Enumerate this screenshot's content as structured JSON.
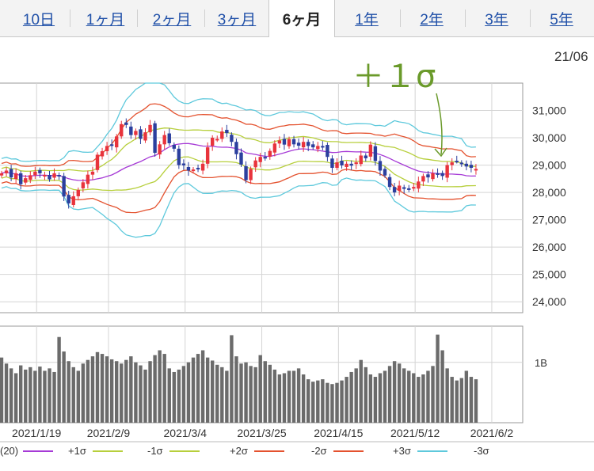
{
  "tabs": [
    {
      "label": "10日",
      "active": false
    },
    {
      "label": "1ヶ月",
      "active": false
    },
    {
      "label": "2ヶ月",
      "active": false
    },
    {
      "label": "3ヶ月",
      "active": false
    },
    {
      "label": "6ヶ月",
      "active": true
    },
    {
      "label": "1年",
      "active": false
    },
    {
      "label": "2年",
      "active": false
    },
    {
      "label": "3年",
      "active": false
    },
    {
      "label": "5年",
      "active": false
    }
  ],
  "date_label": "21/06",
  "annotation": "＋１σ",
  "colors": {
    "up": "#e8333c",
    "down": "#2b3f9e",
    "ma": "#a63ad6",
    "sigma1": "#b7cf3c",
    "sigma2": "#e4522f",
    "sigma3": "#5ec9dc",
    "volume": "#6b6b6b",
    "annotation": "#6a9a2a"
  },
  "legend": [
    {
      "label": "(20)",
      "color": "#a63ad6"
    },
    {
      "label": "+1σ",
      "color": "#b7cf3c"
    },
    {
      "label": "-1σ",
      "color": "#b7cf3c"
    },
    {
      "label": "+2σ",
      "color": "#e4522f"
    },
    {
      "label": "-2σ",
      "color": "#e4522f"
    },
    {
      "label": "+3σ",
      "color": "#5ec9dc"
    },
    {
      "label": "-3σ",
      "color": "#5ec9dc"
    }
  ],
  "chart_data": {
    "type": "candlestick",
    "price_ticks": [
      "31,000",
      "30,000",
      "29,000",
      "28,000",
      "27,000",
      "26,000",
      "25,000",
      "24,000"
    ],
    "price_tick_values": [
      31000,
      30000,
      29000,
      28000,
      27000,
      26000,
      25000,
      24000
    ],
    "ylim": [
      23600,
      32000
    ],
    "volume_tick": "1B",
    "volume_tick_value": 1.0,
    "volume_ylim": [
      0,
      1.6
    ],
    "x_tick_labels": [
      "2021/1/19",
      "2021/2/9",
      "2021/3/4",
      "2021/3/25",
      "2021/4/15",
      "2021/5/12",
      "2021/6/2"
    ],
    "x_tick_index": [
      4,
      19,
      35,
      51,
      67,
      83,
      99
    ],
    "close": [
      28700,
      28800,
      28550,
      28700,
      28300,
      28520,
      28630,
      28760,
      28700,
      28640,
      28480,
      28700,
      28600,
      27850,
      27600,
      27860,
      28090,
      28370,
      28650,
      28760,
      29380,
      29510,
      29700,
      29710,
      30050,
      30500,
      30470,
      30100,
      30250,
      29960,
      30200,
      30470,
      29450,
      29760,
      30100,
      29800,
      29600,
      29000,
      28990,
      28800,
      28840,
      28860,
      29050,
      29650,
      30000,
      29960,
      30230,
      30170,
      29850,
      29400,
      29020,
      28450,
      28860,
      29170,
      29300,
      29250,
      29520,
      29790,
      29900,
      29750,
      29950,
      29760,
      29710,
      29850,
      29700,
      29650,
      29700,
      29680,
      29300,
      28900,
      29100,
      28990,
      29050,
      28980,
      29100,
      29350,
      29250,
      29750,
      29150,
      28800,
      28620,
      28200,
      28000,
      28250,
      28150,
      28100,
      28200,
      28400,
      28600,
      28550,
      28700,
      28650,
      28600,
      29000,
      29100,
      29150,
      29050,
      28950,
      28900,
      28860
    ],
    "volume": [
      1.08,
      0.98,
      0.9,
      0.82,
      0.95,
      0.88,
      0.92,
      0.86,
      0.93,
      0.86,
      0.9,
      0.84,
      1.42,
      1.18,
      1.02,
      0.92,
      0.86,
      0.98,
      1.04,
      1.1,
      1.17,
      1.14,
      1.1,
      1.05,
      1.02,
      0.98,
      1.04,
      1.1,
      1.0,
      0.95,
      0.88,
      1.02,
      1.12,
      1.2,
      1.14,
      0.9,
      0.84,
      0.88,
      0.94,
      1.0,
      1.08,
      1.14,
      1.2,
      1.08,
      1.03,
      0.96,
      0.92,
      0.86,
      1.45,
      1.1,
      0.98,
      1.0,
      0.94,
      0.92,
      1.12,
      1.02,
      0.96,
      0.88,
      0.8,
      0.82,
      0.86,
      0.86,
      0.9,
      0.8,
      0.72,
      0.68,
      0.7,
      0.72,
      0.66,
      0.64,
      0.66,
      0.7,
      0.76,
      0.84,
      0.9,
      1.04,
      0.92,
      0.8,
      0.76,
      0.82,
      0.86,
      0.94,
      1.02,
      0.98,
      0.9,
      0.86,
      0.82,
      0.76,
      0.8,
      0.86,
      0.94,
      1.46,
      1.2,
      0.9,
      0.76,
      0.7,
      0.74,
      0.86,
      0.76,
      0.72
    ]
  }
}
